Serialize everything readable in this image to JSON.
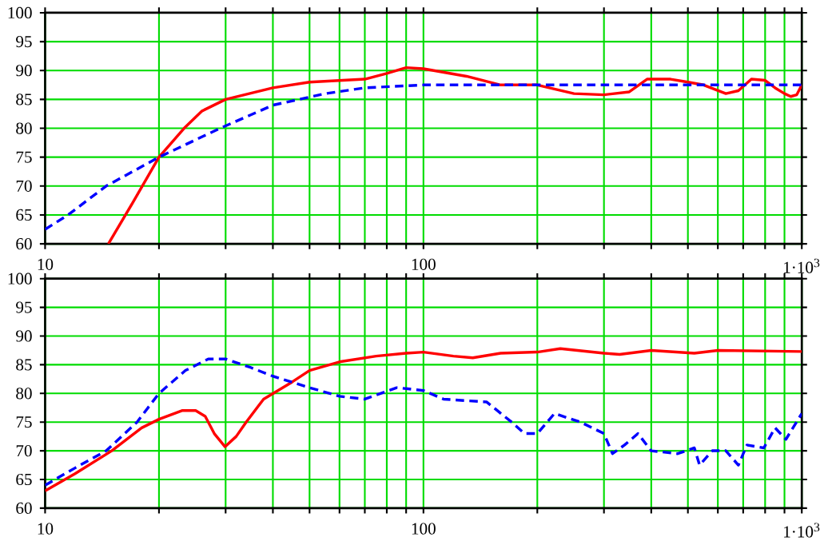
{
  "chart_data": [
    {
      "type": "line",
      "log": "x",
      "grid": true,
      "marker": "none",
      "xlim": [
        10,
        1000
      ],
      "ylim": [
        60,
        100
      ],
      "xticks": [
        10,
        {
          "value": 20,
          "label": null
        },
        {
          "value": 30,
          "label": null
        },
        {
          "value": 40,
          "label": null
        },
        {
          "value": 50,
          "label": null
        },
        {
          "value": 60,
          "label": null
        },
        {
          "value": 70,
          "label": null
        },
        {
          "value": 80,
          "label": null
        },
        {
          "value": 90,
          "label": null
        },
        100,
        {
          "value": 200,
          "label": null
        },
        {
          "value": 300,
          "label": null
        },
        {
          "value": 400,
          "label": null
        },
        {
          "value": 500,
          "label": null
        },
        {
          "value": 600,
          "label": null
        },
        {
          "value": 700,
          "label": null
        },
        {
          "value": 800,
          "label": null
        },
        {
          "value": 900,
          "label": null
        },
        {
          "value": 1000,
          "label": "1·10$^{3}$"
        }
      ],
      "yticks": [
        60,
        65,
        70,
        75,
        80,
        85,
        90,
        95,
        100
      ],
      "series": [
        {
          "color": "#ff0000",
          "line_style": "solid",
          "x": [
            14.7,
            17,
            20,
            23.3,
            26,
            30,
            40,
            50,
            70,
            80,
            90,
            100,
            130,
            160,
            200,
            250,
            300,
            350,
            390,
            450,
            500,
            550,
            630,
            680,
            736,
            800,
            850,
            900,
            935,
            970,
            1000
          ],
          "values": [
            60,
            67,
            75,
            80,
            83,
            85,
            87,
            88,
            88.5,
            89.5,
            90.5,
            90.3,
            89,
            87.5,
            87.5,
            86,
            85.8,
            86.3,
            88.5,
            88.5,
            88,
            87.5,
            86,
            86.5,
            88.5,
            88.3,
            87,
            86,
            85.5,
            85.8,
            87.5
          ]
        },
        {
          "color": "#0000ff",
          "line_style": "dashed",
          "x": [
            10,
            11.5,
            14.5,
            20,
            29,
            40,
            55,
            70,
            100,
            200,
            500,
            1000
          ],
          "values": [
            62.5,
            65,
            70,
            75,
            80,
            84,
            86,
            87,
            87.5,
            87.5,
            87.5,
            87.5
          ]
        }
      ]
    },
    {
      "type": "line",
      "log": "x",
      "grid": true,
      "marker": "none",
      "xlim": [
        10,
        1000
      ],
      "ylim": [
        60,
        100
      ],
      "xticks": [
        10,
        {
          "value": 20,
          "label": null
        },
        {
          "value": 30,
          "label": null
        },
        {
          "value": 40,
          "label": null
        },
        {
          "value": 50,
          "label": null
        },
        {
          "value": 60,
          "label": null
        },
        {
          "value": 70,
          "label": null
        },
        {
          "value": 80,
          "label": null
        },
        {
          "value": 90,
          "label": null
        },
        100,
        {
          "value": 200,
          "label": null
        },
        {
          "value": 300,
          "label": null
        },
        {
          "value": 400,
          "label": null
        },
        {
          "value": 500,
          "label": null
        },
        {
          "value": 600,
          "label": null
        },
        {
          "value": 700,
          "label": null
        },
        {
          "value": 800,
          "label": null
        },
        {
          "value": 900,
          "label": null
        },
        {
          "value": 1000,
          "label": "1·10$^{3}$"
        }
      ],
      "yticks": [
        60,
        65,
        70,
        75,
        80,
        85,
        90,
        95,
        100
      ],
      "series": [
        {
          "color": "#ff0000",
          "line_style": "solid",
          "x": [
            10,
            12,
            15,
            18,
            20,
            23,
            25,
            26.5,
            28,
            29.9,
            32,
            34,
            37.8,
            45,
            50,
            60,
            75,
            90,
            100,
            120,
            135,
            160,
            200,
            230,
            300,
            330,
            400,
            520,
            600,
            1000
          ],
          "values": [
            63,
            66,
            70,
            74,
            75.5,
            77,
            77,
            76,
            73,
            70.7,
            72.5,
            75,
            79,
            82,
            84,
            85.5,
            86.5,
            87,
            87.2,
            86.5,
            86.2,
            87,
            87.2,
            87.8,
            87,
            86.8,
            87.5,
            87,
            87.5,
            87.3
          ]
        },
        {
          "color": "#0000ff",
          "line_style": "dashed",
          "x": [
            10,
            12,
            14.5,
            17.5,
            20,
            23.5,
            27,
            30,
            35,
            40,
            50,
            60,
            70,
            85,
            100,
            113,
            147,
            171,
            185,
            200,
            222,
            260,
            300,
            316,
            340,
            369,
            400,
            470,
            520,
            537,
            580,
            630,
            680,
            716,
            794,
            850,
            908,
            1000
          ],
          "values": [
            64,
            67,
            70,
            75,
            80,
            84,
            86,
            86,
            84.5,
            83,
            81,
            79.5,
            79,
            81,
            80.5,
            79,
            78.5,
            75,
            73,
            73,
            76.5,
            75,
            73,
            69.5,
            71,
            73,
            70,
            69.5,
            70.5,
            67.5,
            70,
            70,
            67.5,
            71,
            70.5,
            74,
            72,
            76.5
          ]
        }
      ]
    }
  ]
}
